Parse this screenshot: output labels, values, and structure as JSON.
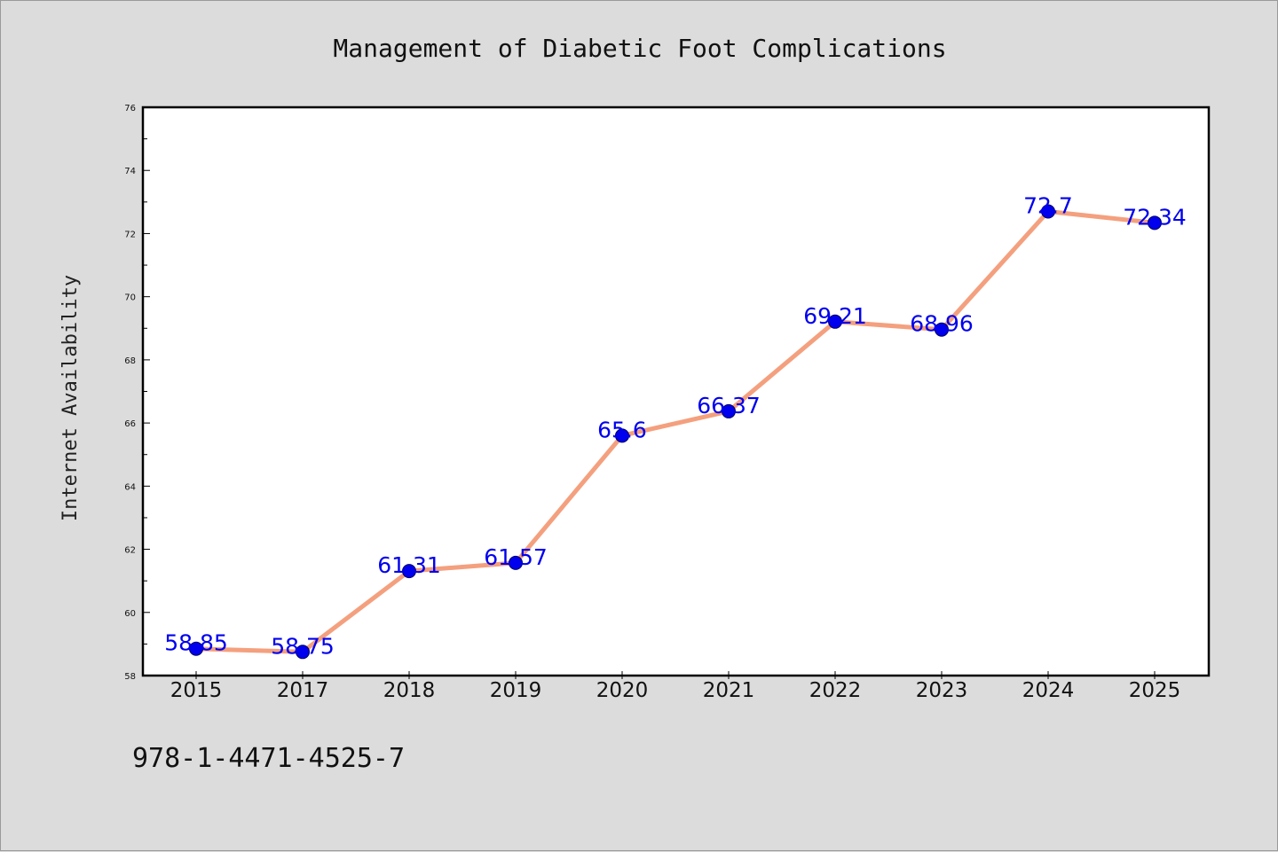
{
  "chart_data": {
    "type": "line",
    "title": "Management of Diabetic Foot Complications",
    "xlabel": "",
    "ylabel": "Internet Availability",
    "categories": [
      "2015",
      "2017",
      "2018",
      "2019",
      "2020",
      "2021",
      "2022",
      "2023",
      "2024",
      "2025"
    ],
    "series": [
      {
        "values": [
          58.85,
          58.75,
          61.31,
          61.57,
          65.6,
          66.37,
          69.21,
          68.96,
          72.7,
          72.34
        ],
        "data_labels": [
          "58.85",
          "58.75",
          "61.31",
          "61.57",
          "65.6",
          "66.37",
          "69.21",
          "68.96",
          "72.7",
          "72.34"
        ],
        "line_color": "#f4a07e",
        "marker_color": "#0000ee"
      }
    ],
    "ylim": [
      58,
      76
    ],
    "yticks": [
      "58",
      "60",
      "62",
      "64",
      "66",
      "68",
      "70",
      "72",
      "74",
      "76"
    ],
    "grid": false,
    "legend": "none"
  },
  "footer": {
    "isbn": "978-1-4471-4525-7"
  },
  "colors": {
    "background": "#dcdcdc",
    "plot_area": "#ffffff",
    "axis": "#000000",
    "label": "#0000ee"
  }
}
